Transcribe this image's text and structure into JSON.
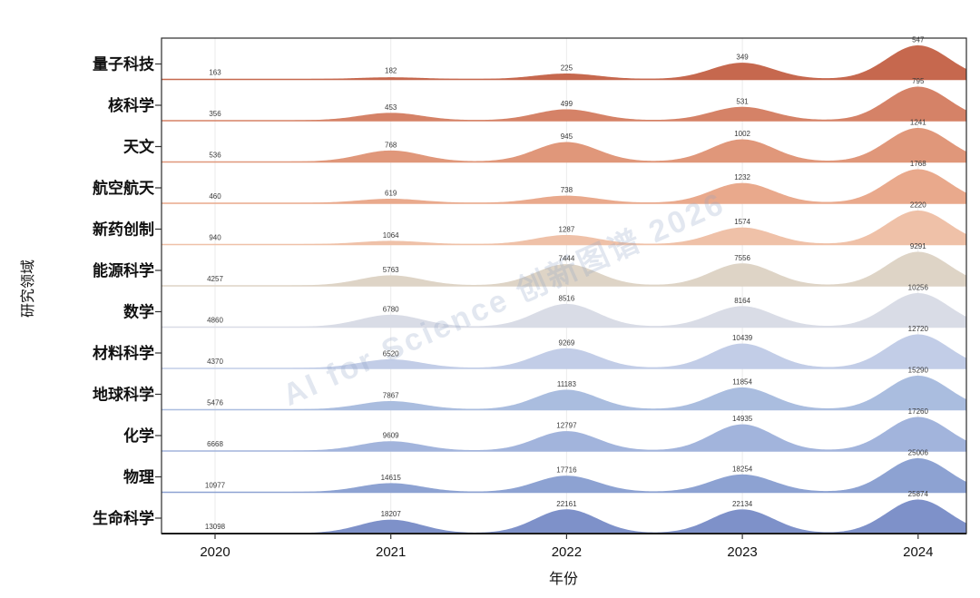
{
  "figure": {
    "background": "#ffffff",
    "watermark": "AI for Science 创新图谱 2026"
  },
  "chart_data": {
    "type": "ridgeline",
    "title": "",
    "xlabel": "年份",
    "ylabel": "研究领域",
    "categories": [
      "2020",
      "2021",
      "2022",
      "2023",
      "2024"
    ],
    "legend": "none",
    "grid": "vertical-faint",
    "value_labels": "shown above each peak",
    "series": [
      {
        "name": "量子科技",
        "values": [
          163,
          182,
          225,
          349,
          547
        ],
        "color": "#c6684e"
      },
      {
        "name": "核科学",
        "values": [
          356,
          453,
          499,
          531,
          795
        ],
        "color": "#d58267"
      },
      {
        "name": "天文",
        "values": [
          536,
          768,
          945,
          1002,
          1241
        ],
        "color": "#e0977a"
      },
      {
        "name": "航空航天",
        "values": [
          460,
          619,
          738,
          1232,
          1768
        ],
        "color": "#e9a98c"
      },
      {
        "name": "新药创制",
        "values": [
          940,
          1064,
          1287,
          1574,
          2220
        ],
        "color": "#efc1a8"
      },
      {
        "name": "能源科学",
        "values": [
          4257,
          5763,
          7444,
          7556,
          9291
        ],
        "color": "#ded4c6"
      },
      {
        "name": "数学",
        "values": [
          4860,
          6780,
          8516,
          8164,
          10256
        ],
        "color": "#d9dce6"
      },
      {
        "name": "材料科学",
        "values": [
          4370,
          6520,
          9269,
          10439,
          12720
        ],
        "color": "#c2cde7"
      },
      {
        "name": "地球科学",
        "values": [
          5476,
          7867,
          11183,
          11854,
          15290
        ],
        "color": "#aabddf"
      },
      {
        "name": "化学",
        "values": [
          6668,
          9609,
          12797,
          14935,
          17260
        ],
        "color": "#a2b4dc"
      },
      {
        "name": "物理",
        "values": [
          10977,
          14615,
          17716,
          18254,
          25006
        ],
        "color": "#8da2d2"
      },
      {
        "name": "生命科学",
        "values": [
          13098,
          18207,
          22161,
          22134,
          25874
        ],
        "color": "#7e91c9"
      }
    ]
  }
}
